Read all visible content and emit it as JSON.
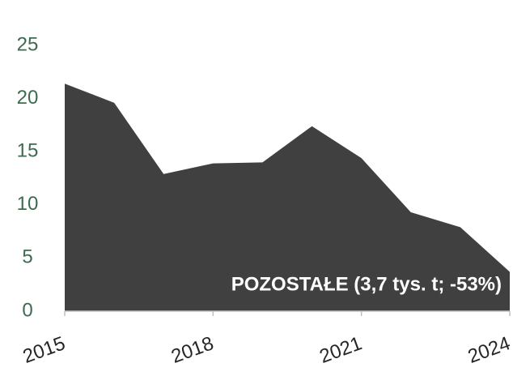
{
  "chart_data": {
    "type": "area",
    "x": [
      2015,
      2016,
      2017,
      2018,
      2019,
      2020,
      2021,
      2022,
      2023,
      2024
    ],
    "series": [
      {
        "color": "#404040",
        "values": [
          21.4,
          19.6,
          12.9,
          13.9,
          14.0,
          17.4,
          14.4,
          9.3,
          7.9,
          3.7
        ]
      }
    ],
    "annotation": "POZOSTAŁE (3,7 tys. t; -53%)",
    "xlim": [
      2015,
      2024
    ],
    "xticks": [
      2015,
      2018,
      2021,
      2024
    ],
    "ylim": [
      0,
      25
    ],
    "yticks": [
      0,
      5,
      10,
      15,
      20,
      25
    ]
  }
}
